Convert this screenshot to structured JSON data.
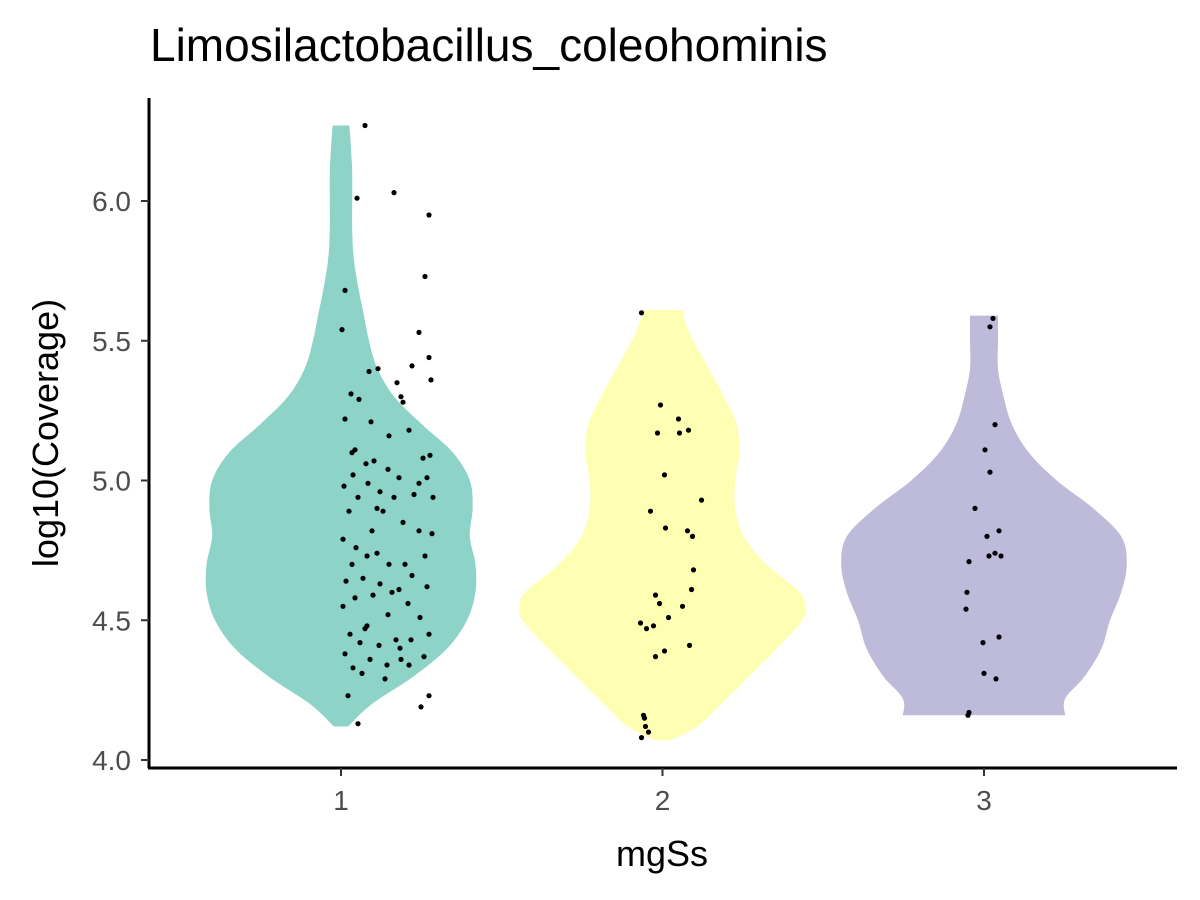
{
  "chart_data": {
    "type": "violin",
    "title": "Limosilactobacillus_coleohominis",
    "xlabel": "mgSs",
    "ylabel": "log10(Coverage)",
    "categories": [
      "1",
      "2",
      "3"
    ],
    "ylim": [
      3.98,
      6.32
    ],
    "yticks": [
      "4.0",
      "4.5",
      "5.0",
      "5.5",
      "6.0"
    ],
    "grid": false,
    "legend": "none",
    "colors": [
      "#8dd3c7",
      "#ffffb3",
      "#bebada"
    ],
    "series": [
      {
        "category": "1",
        "range": [
          4.12,
          6.27
        ],
        "density_profile": [
          [
            4.12,
            0.05
          ],
          [
            4.2,
            0.22
          ],
          [
            4.3,
            0.52
          ],
          [
            4.4,
            0.76
          ],
          [
            4.5,
            0.9
          ],
          [
            4.6,
            0.96
          ],
          [
            4.7,
            0.96
          ],
          [
            4.8,
            0.92
          ],
          [
            4.9,
            0.94
          ],
          [
            5.0,
            0.92
          ],
          [
            5.1,
            0.8
          ],
          [
            5.2,
            0.58
          ],
          [
            5.3,
            0.38
          ],
          [
            5.4,
            0.26
          ],
          [
            5.5,
            0.2
          ],
          [
            5.6,
            0.16
          ],
          [
            5.7,
            0.12
          ],
          [
            5.8,
            0.09
          ],
          [
            5.9,
            0.08
          ],
          [
            6.0,
            0.08
          ],
          [
            6.1,
            0.08
          ],
          [
            6.2,
            0.07
          ],
          [
            6.27,
            0.06
          ]
        ],
        "points": [
          [
            0.24,
            6.27
          ],
          [
            0.16,
            6.01
          ],
          [
            0.53,
            6.03
          ],
          [
            0.88,
            5.95
          ],
          [
            0.84,
            5.73
          ],
          [
            0.04,
            5.68
          ],
          [
            0.78,
            5.53
          ],
          [
            0.01,
            5.54
          ],
          [
            0.88,
            5.44
          ],
          [
            0.37,
            5.4
          ],
          [
            0.71,
            5.41
          ],
          [
            0.56,
            5.35
          ],
          [
            0.28,
            5.39
          ],
          [
            0.6,
            5.3
          ],
          [
            0.1,
            5.31
          ],
          [
            0.9,
            5.36
          ],
          [
            0.18,
            5.29
          ],
          [
            0.04,
            5.22
          ],
          [
            0.3,
            5.21
          ],
          [
            0.48,
            5.16
          ],
          [
            0.68,
            5.18
          ],
          [
            0.14,
            5.11
          ],
          [
            0.33,
            5.07
          ],
          [
            0.82,
            5.08
          ],
          [
            0.25,
            5.06
          ],
          [
            0.89,
            5.09
          ],
          [
            0.47,
            5.04
          ],
          [
            0.12,
            5.02
          ],
          [
            0.58,
            5.01
          ],
          [
            0.03,
            4.98
          ],
          [
            0.86,
            5.01
          ],
          [
            0.39,
            4.96
          ],
          [
            0.73,
            4.95
          ],
          [
            0.17,
            4.94
          ],
          [
            0.27,
            4.99
          ],
          [
            0.53,
            4.94
          ],
          [
            0.92,
            4.94
          ],
          [
            0.08,
            4.89
          ],
          [
            0.42,
            4.89
          ],
          [
            0.62,
            4.85
          ],
          [
            0.31,
            4.82
          ],
          [
            0.78,
            4.82
          ],
          [
            0.91,
            4.81
          ],
          [
            0.02,
            4.79
          ],
          [
            0.15,
            4.76
          ],
          [
            0.36,
            4.74
          ],
          [
            0.64,
            4.7
          ],
          [
            0.84,
            4.73
          ],
          [
            0.26,
            4.73
          ],
          [
            0.48,
            4.7
          ],
          [
            0.11,
            4.7
          ],
          [
            0.71,
            4.66
          ],
          [
            0.05,
            4.64
          ],
          [
            0.22,
            4.65
          ],
          [
            0.39,
            4.63
          ],
          [
            0.58,
            4.61
          ],
          [
            0.86,
            4.62
          ],
          [
            0.14,
            4.58
          ],
          [
            0.32,
            4.59
          ],
          [
            0.67,
            4.56
          ],
          [
            0.02,
            4.55
          ],
          [
            0.47,
            4.52
          ],
          [
            0.24,
            4.47
          ],
          [
            0.79,
            4.51
          ],
          [
            0.09,
            4.45
          ],
          [
            0.55,
            4.43
          ],
          [
            0.88,
            4.45
          ],
          [
            0.19,
            4.42
          ],
          [
            0.38,
            4.41
          ],
          [
            0.7,
            4.43
          ],
          [
            0.04,
            4.38
          ],
          [
            0.29,
            4.36
          ],
          [
            0.6,
            4.36
          ],
          [
            0.83,
            4.37
          ],
          [
            0.12,
            4.33
          ],
          [
            0.46,
            4.34
          ],
          [
            0.68,
            4.34
          ],
          [
            0.21,
            4.31
          ],
          [
            0.07,
            4.23
          ],
          [
            0.88,
            4.23
          ],
          [
            0.17,
            4.13
          ],
          [
            0.8,
            4.19
          ],
          [
            0.59,
            4.4
          ],
          [
            0.44,
            4.29
          ],
          [
            0.26,
            4.48
          ],
          [
            0.51,
            4.6
          ],
          [
            0.36,
            4.9
          ],
          [
            0.62,
            5.28
          ],
          [
            0.11,
            5.1
          ],
          [
            0.78,
            4.99
          ]
        ]
      },
      {
        "category": "2",
        "range": [
          4.07,
          5.61
        ],
        "density_profile": [
          [
            4.07,
            0.05
          ],
          [
            4.12,
            0.25
          ],
          [
            4.2,
            0.42
          ],
          [
            4.3,
            0.62
          ],
          [
            4.4,
            0.82
          ],
          [
            4.5,
            1.0
          ],
          [
            4.55,
            1.02
          ],
          [
            4.6,
            0.98
          ],
          [
            4.7,
            0.74
          ],
          [
            4.8,
            0.58
          ],
          [
            4.9,
            0.52
          ],
          [
            5.0,
            0.52
          ],
          [
            5.1,
            0.55
          ],
          [
            5.2,
            0.53
          ],
          [
            5.3,
            0.44
          ],
          [
            5.4,
            0.33
          ],
          [
            5.5,
            0.22
          ],
          [
            5.57,
            0.16
          ],
          [
            5.61,
            0.15
          ]
        ],
        "points": [
          [
            -0.21,
            5.6
          ],
          [
            -0.02,
            5.27
          ],
          [
            -0.05,
            5.17
          ],
          [
            0.16,
            5.22
          ],
          [
            0.17,
            5.17
          ],
          [
            0.26,
            5.18
          ],
          [
            0.02,
            5.02
          ],
          [
            -0.12,
            4.89
          ],
          [
            0.39,
            4.93
          ],
          [
            0.03,
            4.83
          ],
          [
            0.25,
            4.82
          ],
          [
            0.3,
            4.8
          ],
          [
            0.31,
            4.68
          ],
          [
            0.29,
            4.61
          ],
          [
            -0.07,
            4.59
          ],
          [
            -0.03,
            4.56
          ],
          [
            0.2,
            4.55
          ],
          [
            0.06,
            4.51
          ],
          [
            -0.22,
            4.49
          ],
          [
            -0.09,
            4.48
          ],
          [
            -0.16,
            4.47
          ],
          [
            0.02,
            4.39
          ],
          [
            -0.07,
            4.37
          ],
          [
            0.27,
            4.41
          ],
          [
            -0.19,
            4.16
          ],
          [
            -0.18,
            4.15
          ],
          [
            -0.14,
            4.1
          ],
          [
            -0.21,
            4.08
          ],
          [
            -0.17,
            4.12
          ]
        ]
      },
      {
        "category": "3",
        "range": [
          4.16,
          5.59
        ],
        "density_profile": [
          [
            4.16,
            0.58
          ],
          [
            4.22,
            0.58
          ],
          [
            4.3,
            0.72
          ],
          [
            4.4,
            0.84
          ],
          [
            4.5,
            0.9
          ],
          [
            4.6,
            0.98
          ],
          [
            4.7,
            1.02
          ],
          [
            4.8,
            0.98
          ],
          [
            4.9,
            0.78
          ],
          [
            5.0,
            0.52
          ],
          [
            5.1,
            0.32
          ],
          [
            5.2,
            0.2
          ],
          [
            5.3,
            0.14
          ],
          [
            5.4,
            0.1
          ],
          [
            5.5,
            0.1
          ],
          [
            5.59,
            0.1
          ]
        ],
        "points": [
          [
            0.09,
            5.58
          ],
          [
            0.06,
            5.55
          ],
          [
            0.11,
            5.2
          ],
          [
            0.01,
            5.11
          ],
          [
            0.06,
            5.03
          ],
          [
            -0.09,
            4.9
          ],
          [
            0.03,
            4.8
          ],
          [
            0.15,
            4.82
          ],
          [
            0.05,
            4.73
          ],
          [
            0.11,
            4.74
          ],
          [
            0.17,
            4.73
          ],
          [
            -0.15,
            4.71
          ],
          [
            -0.17,
            4.6
          ],
          [
            -0.18,
            4.54
          ],
          [
            0.15,
            4.44
          ],
          [
            -0.01,
            4.42
          ],
          [
            0.0,
            4.31
          ],
          [
            0.12,
            4.29
          ],
          [
            -0.15,
            4.17
          ],
          [
            -0.16,
            4.16
          ]
        ]
      }
    ]
  }
}
